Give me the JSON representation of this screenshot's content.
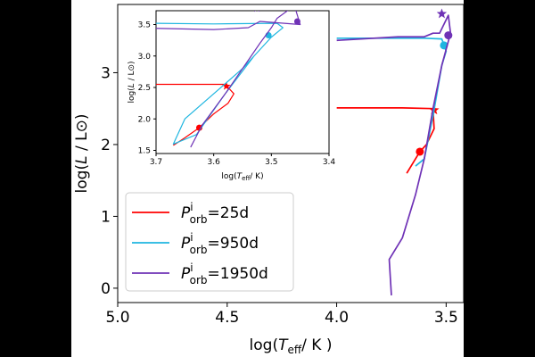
{
  "colors": {
    "background": "#ffffff",
    "letterbox": "#000000",
    "axis": "#000000",
    "red": "#ff0000",
    "cyan": "#1fb6e0",
    "purple": "#6f32b6"
  },
  "chart_data": [
    {
      "type": "line",
      "panel": "main",
      "xlabel": "log(T_eff/ K )",
      "ylabel": "log(L / L⊙)",
      "xlim": [
        5.0,
        3.42
      ],
      "ylim": [
        -0.2,
        3.95
      ],
      "x_inverted": true,
      "xticks": [
        5.0,
        4.5,
        4.0,
        3.5
      ],
      "xtick_labels": [
        "5.0",
        "4.5",
        "4.0",
        "3.5"
      ],
      "yticks": [
        0,
        1,
        2,
        3
      ],
      "ytick_labels": [
        "0",
        "1",
        "2",
        "3"
      ],
      "legend_position": "lower-left",
      "series": [
        {
          "name": "P^i_orb=25d",
          "legend_main": "P",
          "legend_sup": "i",
          "legend_sub": "orb",
          "legend_value": "=25d",
          "color_key": "red",
          "x": [
            3.9997,
            3.82,
            3.7,
            3.56,
            3.555,
            3.59,
            3.62,
            3.66,
            3.68
          ],
          "y": [
            2.51,
            2.51,
            2.51,
            2.5,
            2.22,
            2.0,
            1.9,
            1.7,
            1.6
          ],
          "markers": [
            {
              "symbol": "star",
              "x": 3.555,
              "y": 2.48
            },
            {
              "symbol": "circle",
              "x": 3.62,
              "y": 1.9
            }
          ]
        },
        {
          "name": "P^i_orb=950d",
          "legend_main": "P",
          "legend_sup": "i",
          "legend_sub": "orb",
          "legend_value": "=950d",
          "color_key": "cyan",
          "x": [
            3.9997,
            3.8,
            3.6,
            3.52,
            3.5,
            3.52,
            3.56,
            3.6,
            3.64
          ],
          "y": [
            3.48,
            3.48,
            3.48,
            3.47,
            3.3,
            3.1,
            2.4,
            1.8,
            1.7
          ],
          "markers": [
            {
              "symbol": "circle",
              "x": 3.51,
              "y": 3.38
            }
          ]
        },
        {
          "name": "P^i_orb=1950d",
          "legend_main": "P",
          "legend_sup": "i",
          "legend_sub": "orb",
          "legend_value": "=1950d",
          "color_key": "purple",
          "x": [
            3.75,
            3.76,
            3.7,
            3.64,
            3.6,
            3.56,
            3.52,
            3.48,
            3.49,
            3.53,
            3.56,
            3.6,
            3.72,
            3.9997
          ],
          "y": [
            -0.1,
            0.4,
            0.7,
            1.3,
            1.8,
            2.5,
            3.1,
            3.55,
            3.8,
            3.55,
            3.55,
            3.5,
            3.5,
            3.45
          ],
          "markers": [
            {
              "symbol": "star",
              "x": 3.52,
              "y": 3.82
            },
            {
              "symbol": "circle",
              "x": 3.49,
              "y": 3.52
            }
          ]
        }
      ]
    },
    {
      "type": "line",
      "panel": "inset",
      "xlabel": "log(T_eff/ K)",
      "ylabel": "log(L / L⊙)",
      "xlim": [
        3.7,
        3.4
      ],
      "ylim": [
        1.45,
        3.72
      ],
      "x_inverted": true,
      "xticks": [
        3.7,
        3.6,
        3.5,
        3.4
      ],
      "xtick_labels": [
        "3.7",
        "3.6",
        "3.5",
        "3.4"
      ],
      "yticks": [
        1.5,
        2.0,
        2.5,
        3.0,
        3.5
      ],
      "ytick_labels": [
        "1.5",
        "2.0",
        "2.5",
        "3.0",
        "3.5"
      ],
      "series": [
        {
          "color_key": "red",
          "x": [
            3.7,
            3.58,
            3.565,
            3.575,
            3.6,
            3.625,
            3.65,
            3.67
          ],
          "y": [
            2.55,
            2.55,
            2.4,
            2.25,
            2.08,
            1.86,
            1.7,
            1.58
          ],
          "markers": [
            {
              "symbol": "star",
              "x": 3.578,
              "y": 2.52
            },
            {
              "symbol": "circle",
              "x": 3.625,
              "y": 1.86
            }
          ]
        },
        {
          "color_key": "cyan",
          "x": [
            3.7,
            3.6,
            3.49,
            3.48,
            3.5,
            3.55,
            3.6,
            3.65,
            3.67,
            3.63,
            3.58,
            3.53
          ],
          "y": [
            3.52,
            3.51,
            3.52,
            3.45,
            3.3,
            2.8,
            2.4,
            2.0,
            1.6,
            1.75,
            2.4,
            3.0
          ],
          "markers": [
            {
              "symbol": "circle",
              "x": 3.505,
              "y": 3.33
            }
          ]
        },
        {
          "color_key": "purple",
          "x": [
            3.64,
            3.62,
            3.58,
            3.55,
            3.52,
            3.5,
            3.49,
            3.46,
            3.45,
            3.52,
            3.54,
            3.6,
            3.7
          ],
          "y": [
            1.55,
            1.9,
            2.4,
            2.8,
            3.2,
            3.45,
            3.6,
            3.8,
            3.5,
            3.55,
            3.45,
            3.42,
            3.44
          ],
          "markers": [
            {
              "symbol": "star",
              "x": 3.525,
              "y": 3.76
            },
            {
              "symbol": "circle",
              "x": 3.455,
              "y": 3.55
            }
          ]
        }
      ]
    }
  ]
}
